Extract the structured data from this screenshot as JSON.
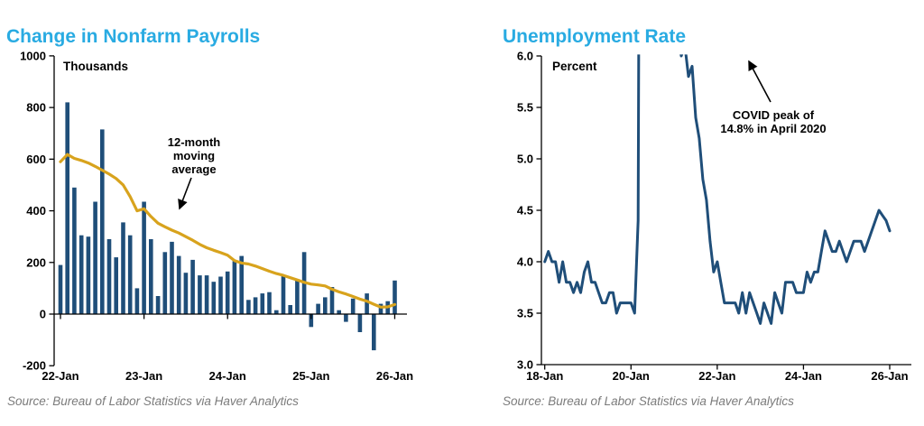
{
  "colors": {
    "title": "#29ABE2",
    "navy": "#1F4E79",
    "gold": "#D8A31D",
    "axis": "#000000",
    "source_text": "#7B7B7B"
  },
  "chart_data": [
    {
      "type": "bar",
      "title": "Change in Nonfarm Payrolls",
      "unit_label": "Thousands",
      "frequency": "monthly",
      "x_range": "Jan 2022 - Jan 2026",
      "ylim": [
        -200,
        1000
      ],
      "y_ticks": [
        {
          "value": 1000,
          "label": "1000"
        },
        {
          "value": 800,
          "label": "800"
        },
        {
          "value": 600,
          "label": "600"
        },
        {
          "value": 400,
          "label": "400"
        },
        {
          "value": 200,
          "label": "200"
        },
        {
          "value": 0,
          "label": "0"
        },
        {
          "value": -200,
          "label": "-200"
        }
      ],
      "x_ticks": [
        {
          "month": 0,
          "label": "22-Jan"
        },
        {
          "month": 12,
          "label": "23-Jan"
        },
        {
          "month": 24,
          "label": "24-Jan"
        },
        {
          "month": 36,
          "label": "25-Jan"
        },
        {
          "month": 48,
          "label": "26-Jan"
        }
      ],
      "series": [
        {
          "name": "Change in nonfarm payrolls (thousands)",
          "style": "bar",
          "values": [
            190,
            820,
            490,
            305,
            300,
            435,
            715,
            290,
            220,
            355,
            305,
            100,
            435,
            290,
            70,
            240,
            280,
            225,
            160,
            210,
            150,
            150,
            125,
            145,
            165,
            205,
            225,
            55,
            65,
            80,
            85,
            15,
            150,
            35,
            135,
            240,
            -50,
            40,
            65,
            105,
            15,
            -30,
            60,
            -70,
            80,
            -140,
            40,
            50,
            130
          ]
        },
        {
          "name": "12-month moving average",
          "style": "line",
          "values": [
            590,
            618,
            603,
            595,
            585,
            572,
            557,
            542,
            525,
            500,
            455,
            400,
            408,
            378,
            352,
            338,
            325,
            314,
            300,
            286,
            270,
            257,
            247,
            238,
            228,
            207,
            198,
            194,
            186,
            176,
            166,
            157,
            150,
            141,
            132,
            123,
            116,
            113,
            109,
            96,
            86,
            78,
            68,
            58,
            50,
            38,
            27,
            28,
            37
          ]
        }
      ],
      "annotation": {
        "lines": [
          "12-month",
          "moving",
          "average"
        ]
      },
      "source": "Source: Bureau of Labor Statistics via Haver Analytics"
    },
    {
      "type": "line",
      "title": "Unemployment Rate",
      "unit_label": "Percent",
      "frequency": "monthly",
      "x_range": "Jan 2018 - Jan 2026",
      "ylim": [
        3.0,
        6.0
      ],
      "y_ticks": [
        {
          "value": 6.0,
          "label": "6.0"
        },
        {
          "value": 5.5,
          "label": "5.5"
        },
        {
          "value": 5.0,
          "label": "5.0"
        },
        {
          "value": 4.5,
          "label": "4.5"
        },
        {
          "value": 4.0,
          "label": "4.0"
        },
        {
          "value": 3.5,
          "label": "3.5"
        },
        {
          "value": 3.0,
          "label": "3.0"
        }
      ],
      "x_ticks": [
        {
          "month": 0,
          "label": "18-Jan"
        },
        {
          "month": 24,
          "label": "20-Jan"
        },
        {
          "month": 48,
          "label": "22-Jan"
        },
        {
          "month": 72,
          "label": "24-Jan"
        },
        {
          "month": 96,
          "label": "26-Jan"
        }
      ],
      "series": [
        {
          "name": "Unemployment rate (percent)",
          "style": "line",
          "values": [
            4.0,
            4.1,
            4.0,
            4.0,
            3.8,
            4.0,
            3.8,
            3.8,
            3.7,
            3.8,
            3.7,
            3.9,
            4.0,
            3.8,
            3.8,
            3.7,
            3.6,
            3.6,
            3.7,
            3.7,
            3.5,
            3.6,
            3.6,
            3.6,
            3.6,
            3.5,
            4.4,
            14.8,
            13.2,
            11.1,
            10.2,
            8.4,
            7.8,
            6.9,
            6.7,
            6.7,
            6.4,
            6.2,
            6.0,
            6.1,
            5.8,
            5.9,
            5.4,
            5.2,
            4.8,
            4.6,
            4.2,
            3.9,
            4.0,
            3.8,
            3.6,
            3.6,
            3.6,
            3.6,
            3.5,
            3.7,
            3.5,
            3.7,
            3.6,
            3.5,
            3.4,
            3.6,
            3.5,
            3.4,
            3.7,
            3.6,
            3.5,
            3.8,
            3.8,
            3.8,
            3.7,
            3.7,
            3.7,
            3.9,
            3.8,
            3.9,
            3.9,
            4.1,
            4.3,
            4.2,
            4.1,
            4.1,
            4.2,
            4.1,
            4.0,
            4.1,
            4.2,
            4.2,
            4.2,
            4.1,
            4.2,
            4.3,
            4.4,
            4.5,
            4.45,
            4.4,
            4.3
          ]
        }
      ],
      "annotation": {
        "lines": [
          "COVID peak of",
          "14.8% in April 2020"
        ]
      },
      "source": "Source: Bureau of Labor Statistics via Haver Analytics"
    }
  ]
}
